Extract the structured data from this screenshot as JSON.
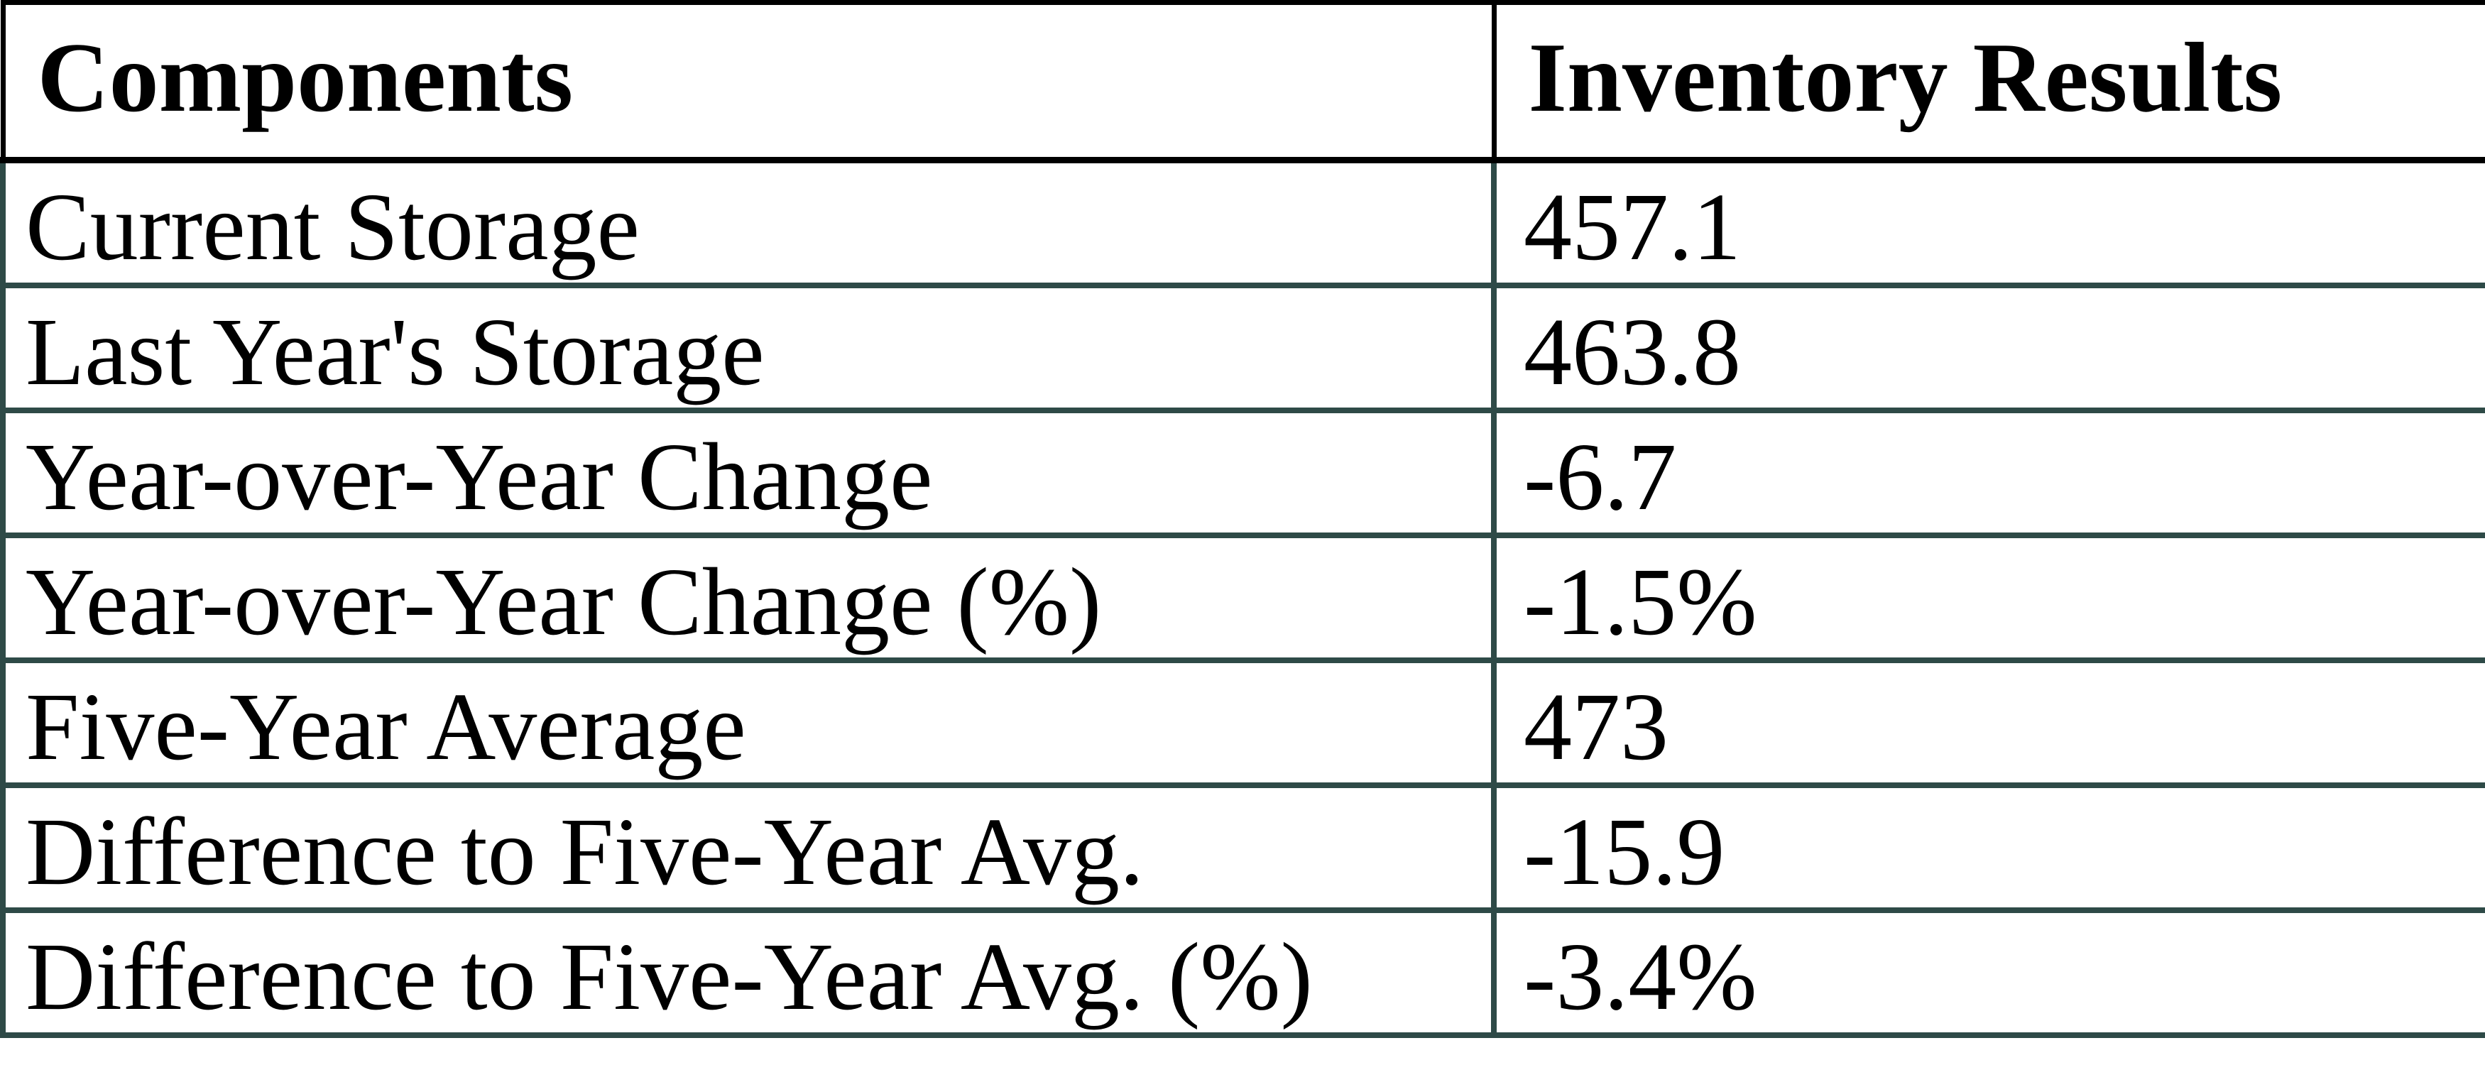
{
  "chart_data": {
    "type": "table",
    "columns": [
      "Components",
      "Inventory Results"
    ],
    "rows": [
      [
        "Current Storage",
        "457.1"
      ],
      [
        "Last Year's Storage",
        "463.8"
      ],
      [
        "Year-over-Year Change",
        "-6.7"
      ],
      [
        "Year-over-Year Change (%)",
        "-1.5%"
      ],
      [
        "Five-Year Average",
        "473"
      ],
      [
        "Difference to Five-Year Avg.",
        "-15.9"
      ],
      [
        "Difference to Five-Year Avg. (%)",
        "-3.4%"
      ]
    ],
    "layout": {
      "header_position": "top",
      "grid": "on"
    },
    "colors": {
      "header_border": "#000000",
      "grid": "#2e4a47",
      "text": "#000000",
      "background": "#ffffff"
    }
  }
}
